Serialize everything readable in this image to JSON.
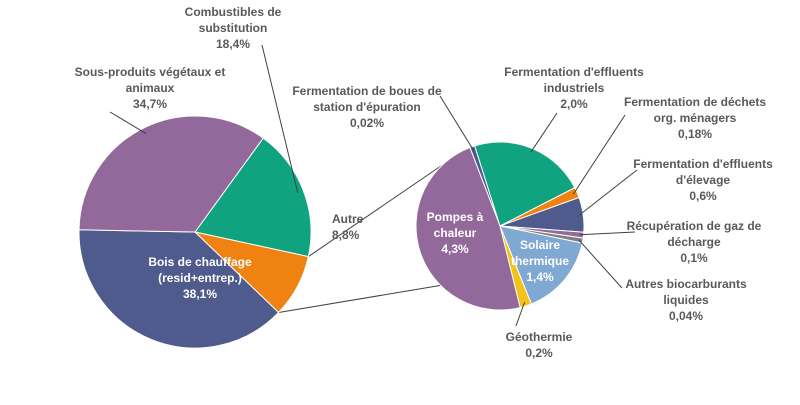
{
  "chart_data": [
    {
      "type": "pie",
      "title": "",
      "slices": [
        {
          "name": "Combustibles de substitution",
          "label_lines": [
            "Combustibles de",
            "substitution"
          ],
          "value_label": "18,4%",
          "value": 18.4,
          "color": "#10A37F"
        },
        {
          "name": "Autre",
          "label_lines": [
            "Autre"
          ],
          "value_label": "8,8%",
          "value": 8.8,
          "color": "#F08212"
        },
        {
          "name": "Bois de chauffage (resid+entrep.)",
          "label_lines": [
            "Bois de chauffage",
            "(resid+entrep.)"
          ],
          "value_label": "38,1%",
          "value": 38.1,
          "color": "#4F5B8D"
        },
        {
          "name": "Sous-produits végétaux et animaux",
          "label_lines": [
            "Sous-produits végétaux et",
            "animaux"
          ],
          "value_label": "34,7%",
          "value": 34.7,
          "color": "#93689A"
        }
      ]
    },
    {
      "type": "pie",
      "title": "",
      "detail_of": "Autre",
      "slices": [
        {
          "name": "Fermentation de boues de station d'épuration",
          "label_lines": [
            "Fermentation de boues de",
            "station d'épuration"
          ],
          "value_label": "0,02%",
          "value": 0.02,
          "color": "#4F5B8D"
        },
        {
          "name": "Fermentation d'effluents industriels",
          "label_lines": [
            "Fermentation d'effluents",
            "industriels"
          ],
          "value_label": "2,0%",
          "value": 2.0,
          "color": "#10A37F"
        },
        {
          "name": "Fermentation de déchets org. ménagers",
          "label_lines": [
            "Fermentation de déchets",
            "org. ménagers"
          ],
          "value_label": "0,18%",
          "value": 0.18,
          "color": "#F08212"
        },
        {
          "name": "Fermentation d'effluents d'élevage",
          "label_lines": [
            "Fermentation d'effluents",
            "d'élevage"
          ],
          "value_label": "0,6%",
          "value": 0.6,
          "color": "#4F5B8D"
        },
        {
          "name": "Récupération de gaz de décharge",
          "label_lines": [
            "Récupération de gaz de",
            "décharge"
          ],
          "value_label": "0,1%",
          "value": 0.1,
          "color": "#93689A"
        },
        {
          "name": "Autres biocarburants liquides",
          "label_lines": [
            "Autres biocarburants",
            "liquides"
          ],
          "value_label": "0,04%",
          "value": 0.04,
          "color": "#7F7F7F"
        },
        {
          "name": "Solaire thermique",
          "label_lines": [
            "Solaire",
            "thermique"
          ],
          "value_label": "1,4%",
          "value": 1.4,
          "color": "#7FA8D2"
        },
        {
          "name": "Géothermie",
          "label_lines": [
            "Géothermie"
          ],
          "value_label": "0,2%",
          "value": 0.2,
          "color": "#F2C318"
        },
        {
          "name": "Pompes à chaleur",
          "label_lines": [
            "Pompes à",
            "chaleur"
          ],
          "value_label": "4,3%",
          "value": 4.3,
          "color": "#93689A"
        }
      ]
    }
  ]
}
